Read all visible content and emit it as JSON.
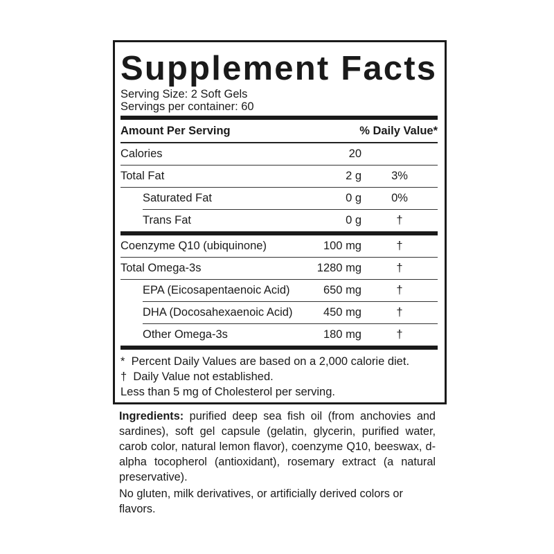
{
  "title": "Supplement Facts",
  "serving_size": "Serving Size: 2 Soft Gels",
  "servings_per_container": "Servings per container: 60",
  "header": {
    "amount": "Amount Per Serving",
    "dv": "% Daily Value*"
  },
  "rows": [
    {
      "name": "Calories",
      "amount": "20",
      "dv": ""
    },
    {
      "name": "Total Fat",
      "amount": "2 g",
      "dv": "3%"
    },
    {
      "name": "Saturated Fat",
      "amount": "0 g",
      "dv": "0%"
    },
    {
      "name": "Trans Fat",
      "amount": "0 g",
      "dv": "†"
    },
    {
      "name": "Coenzyme Q10 (ubiquinone)",
      "amount": "100 mg",
      "dv": "†"
    },
    {
      "name": "Total Omega-3s",
      "amount": "1280 mg",
      "dv": "†"
    },
    {
      "name": "EPA (Eicosapentaenoic Acid)",
      "amount": "650 mg",
      "dv": "†"
    },
    {
      "name": "DHA (Docosahexaenoic Acid)",
      "amount": "450 mg",
      "dv": "†"
    },
    {
      "name": "Other Omega-3s",
      "amount": "180 mg",
      "dv": "†"
    }
  ],
  "footnotes": [
    "*  Percent Daily Values are based on a 2,000 calorie diet.",
    "†  Daily Value not established.",
    "Less than 5 mg of Cholesterol per serving."
  ],
  "ingredients": {
    "label": "Ingredients:",
    "text": " purified deep sea fish oil (from anchovies and sardines), soft gel capsule (gelatin, glycerin, purified water, carob color, natural lemon flavor), coenzyme Q10, beeswax, d-alpha tocopherol (antioxidant), rosemary extract (a natural preservative).",
    "note": "No gluten, milk derivatives, or artificially derived colors or flavors."
  }
}
